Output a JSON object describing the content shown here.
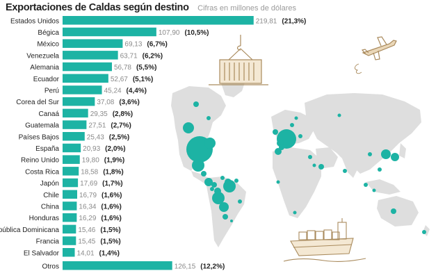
{
  "chart_data": {
    "type": "bar",
    "orientation": "horizontal",
    "title": "Exportaciones de Caldas según destino",
    "subtitle": "Cifras en millones de dólares",
    "categories": [
      "Estados Unidos",
      "Bégica",
      "México",
      "Venezuela",
      "Alemania",
      "Ecuador",
      "Perú",
      "Corea del Sur",
      "Canaá",
      "Guatemala",
      "Países Bajos",
      "España",
      "Reino Unido",
      "Costa Rica",
      "Japón",
      "Chile",
      "China",
      "Honduras",
      "República Dominicana",
      "Francia",
      "El Salvador",
      "Otros"
    ],
    "values": [
      219.81,
      107.9,
      69.13,
      63.71,
      56.78,
      52.67,
      45.24,
      37.08,
      29.35,
      27.51,
      25.43,
      20.93,
      19.8,
      18.58,
      17.69,
      16.79,
      16.34,
      16.29,
      15.46,
      15.45,
      14.01,
      126.15
    ],
    "value_labels": [
      "219,81",
      "107,90",
      "69,13",
      "63,71",
      "56,78",
      "52,67",
      "45,24",
      "37,08",
      "29,35",
      "27,51",
      "25,43",
      "20,93",
      "19,80",
      "18,58",
      "17,69",
      "16,79",
      "16,34",
      "16,29",
      "15,46",
      "15,45",
      "14,01",
      "126,15"
    ],
    "share_labels": [
      "(21,3%)",
      "(10,5%)",
      "(6,7%)",
      "(6,2%)",
      "(5,5%)",
      "(5,1%)",
      "(4,4%)",
      "(3,6%)",
      "(2,8%)",
      "(2,7%)",
      "(2,5%)",
      "(2,0%)",
      "(1,9%)",
      "(1,8%)",
      "(1,7%)",
      "(1,6%)",
      "(1,6%)",
      "(1,6%)",
      "(1,5%)",
      "(1,5%)",
      "(1,4%)",
      "(12,2%)"
    ],
    "bar_color": "#1db3a4",
    "xlim": [
      0,
      220
    ],
    "grid": false,
    "legend": "none",
    "decorations": [
      "world-map",
      "airplane-icon",
      "container-crane-icon",
      "cargo-ship-icon"
    ]
  }
}
